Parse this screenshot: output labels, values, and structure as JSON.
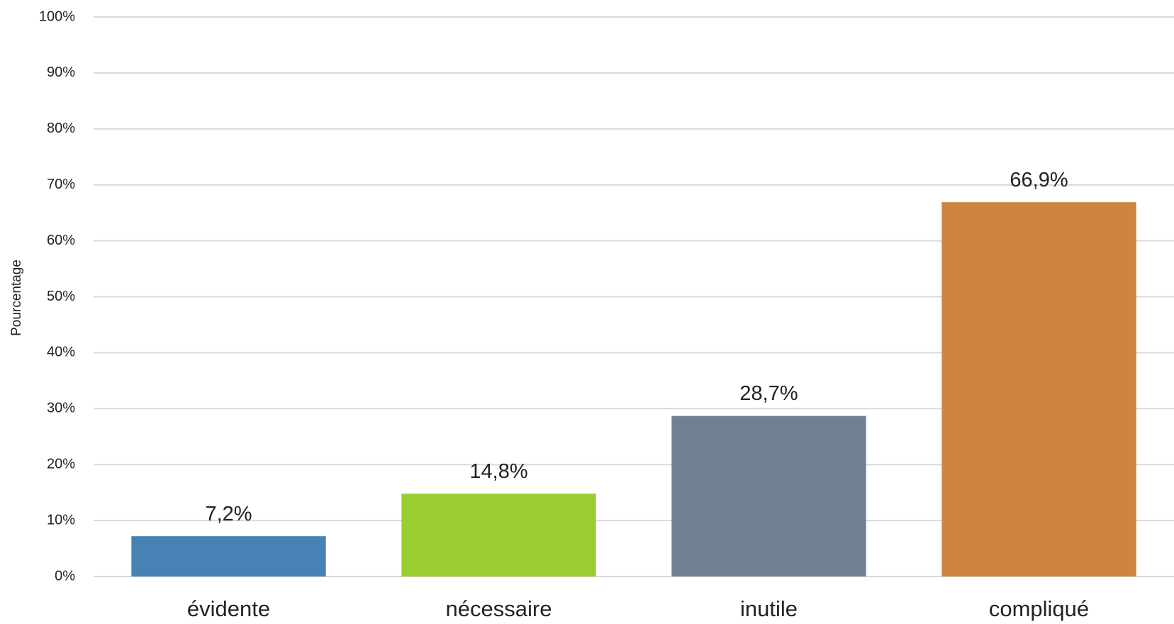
{
  "chart_data": {
    "type": "bar",
    "y_label": "Pourcentage",
    "categories": [
      "évidente",
      "nécessaire",
      "inutile",
      "compliqué"
    ],
    "values": [
      7.2,
      14.8,
      28.7,
      66.9
    ],
    "value_labels": [
      "7,2%",
      "14,8%",
      "28,7%",
      "66,9%"
    ],
    "colors": [
      "#4682b4",
      "#9acd32",
      "#708090",
      "#cd853f"
    ],
    "ylim": [
      0,
      100
    ],
    "yticks": [
      {
        "value": 0,
        "label": "0%"
      },
      {
        "value": 10,
        "label": "10%"
      },
      {
        "value": 20,
        "label": "20%"
      },
      {
        "value": 30,
        "label": "30%"
      },
      {
        "value": 40,
        "label": "40%"
      },
      {
        "value": 50,
        "label": "50%"
      },
      {
        "value": 60,
        "label": "60%"
      },
      {
        "value": 70,
        "label": "70%"
      },
      {
        "value": 80,
        "label": "80%"
      },
      {
        "value": 90,
        "label": "90%"
      },
      {
        "value": 100,
        "label": "100%"
      }
    ],
    "grid": true
  }
}
